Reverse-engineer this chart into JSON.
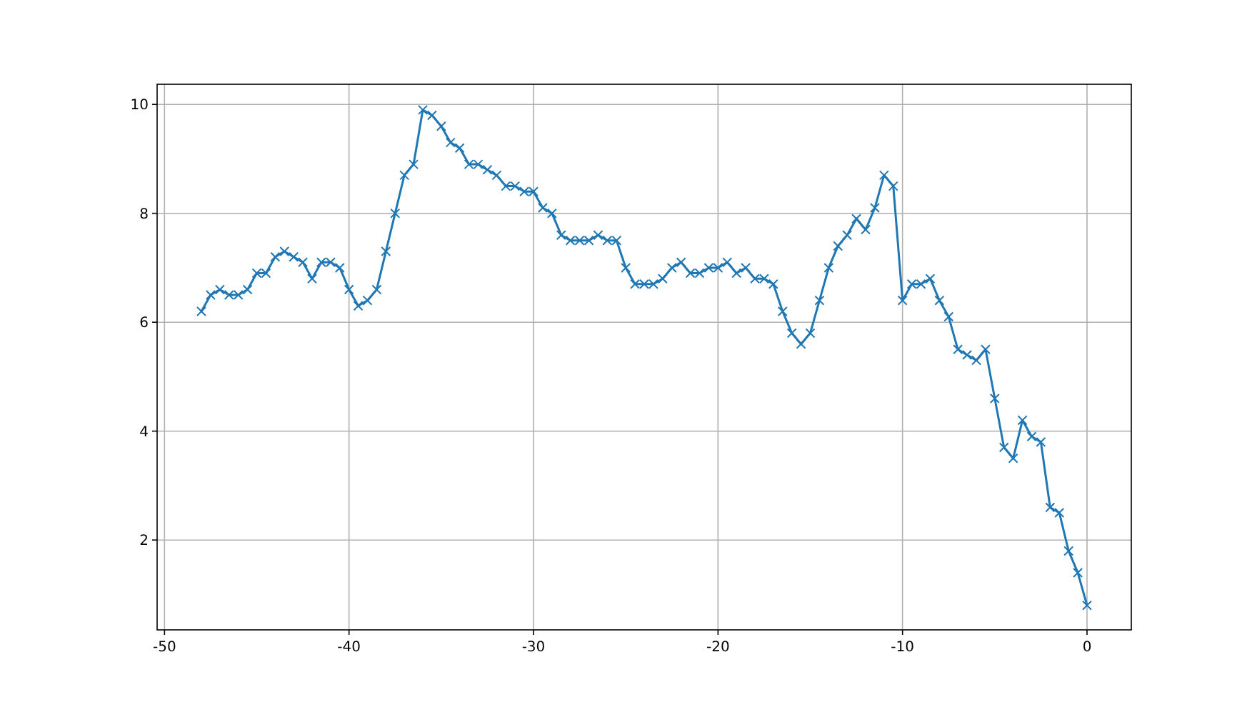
{
  "chart_data": {
    "type": "line",
    "marker": "cross",
    "grid": true,
    "x": [
      -48,
      -47.5,
      -47,
      -46.5,
      -46,
      -45.5,
      -45,
      -44.5,
      -44,
      -43.5,
      -43,
      -42.5,
      -42,
      -41.5,
      -41,
      -40.5,
      -40,
      -39.5,
      -39,
      -38.5,
      -38,
      -37.5,
      -37,
      -36.5,
      -36,
      -35.5,
      -35,
      -34.5,
      -34,
      -33.5,
      -33,
      -32.5,
      -32,
      -31.5,
      -31,
      -30.5,
      -30,
      -29.5,
      -29,
      -28.5,
      -28,
      -27.5,
      -27,
      -26.5,
      -26,
      -25.5,
      -25,
      -24.5,
      -24,
      -23.5,
      -23,
      -22.5,
      -22,
      -21.5,
      -21,
      -20.5,
      -20,
      -19.5,
      -19,
      -18.5,
      -18,
      -17.5,
      -17,
      -16.5,
      -16,
      -15.5,
      -15,
      -14.5,
      -14,
      -13.5,
      -13,
      -12.5,
      -12,
      -11.5,
      -11,
      -10.5,
      -10,
      -9.5,
      -9,
      -8.5,
      -8,
      -7.5,
      -7,
      -6.5,
      -6,
      -5.5,
      -5,
      -4.5,
      -4,
      -3.5,
      -3,
      -2.5,
      -2,
      -1.5,
      -1,
      -0.5,
      0
    ],
    "series": [
      {
        "color": "#1f77b4",
        "values": [
          6.2,
          6.5,
          6.6,
          6.5,
          6.5,
          6.6,
          6.9,
          6.9,
          7.2,
          7.3,
          7.2,
          7.1,
          6.8,
          7.1,
          7.1,
          7.0,
          6.6,
          6.3,
          6.4,
          6.6,
          7.3,
          8.0,
          8.7,
          8.9,
          9.9,
          9.8,
          9.6,
          9.3,
          9.2,
          8.9,
          8.9,
          8.8,
          8.7,
          8.5,
          8.5,
          8.4,
          8.4,
          8.1,
          8.0,
          7.6,
          7.5,
          7.5,
          7.5,
          7.6,
          7.5,
          7.5,
          7.0,
          6.7,
          6.7,
          6.7,
          6.8,
          7.0,
          7.1,
          6.9,
          6.9,
          7.0,
          7.0,
          7.1,
          6.9,
          7.0,
          6.8,
          6.8,
          6.7,
          6.2,
          5.8,
          5.6,
          5.8,
          6.4,
          7.0,
          7.4,
          7.6,
          7.9,
          7.7,
          8.1,
          8.7,
          8.5,
          6.4,
          6.7,
          6.7,
          6.8,
          6.4,
          6.1,
          5.5,
          5.4,
          5.3,
          5.5,
          4.6,
          3.7,
          3.5,
          4.2,
          3.9,
          3.8,
          2.6,
          2.5,
          1.8,
          1.4,
          0.8
        ]
      }
    ],
    "xlim": [
      -50.4,
      2.4
    ],
    "xticks": [
      -50,
      -40,
      -30,
      -20,
      -10,
      0
    ],
    "ylim": [
      0.35,
      10.37
    ],
    "yticks": [
      2,
      4,
      6,
      8,
      10
    ]
  }
}
